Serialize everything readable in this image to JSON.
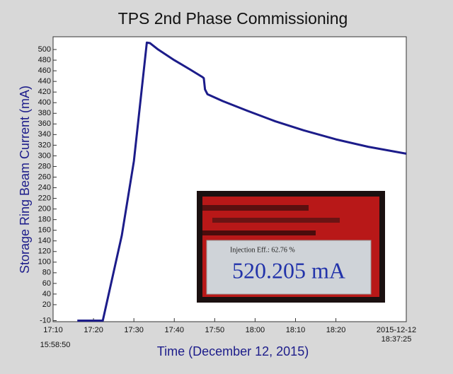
{
  "chart_data": {
    "type": "line",
    "title": "TPS 2nd Phase Commissioning",
    "x_label": "Time (December 12, 2015)",
    "y_label": "Storage Ring Beam Current (mA)",
    "x": [
      16,
      22.3,
      27,
      30,
      33.2,
      34,
      36,
      40,
      44,
      47,
      47.3,
      47.6,
      48.2,
      52,
      58,
      65,
      72,
      80,
      88,
      97.42
    ],
    "series": [
      {
        "name": "Storage Ring Beam Current",
        "color": "#1c1c8a",
        "values": [
          -10,
          -10,
          150,
          290,
          513,
          512,
          500,
          480,
          462,
          448,
          446,
          425,
          416,
          403,
          385,
          365,
          348,
          331,
          317,
          304
        ]
      }
    ],
    "xlim": [
      10,
      97.42
    ],
    "xticks": [
      {
        "value": 10,
        "label": "17:10"
      },
      {
        "value": 20,
        "label": "17:20"
      },
      {
        "value": 30,
        "label": "17:30"
      },
      {
        "value": 40,
        "label": "17:40"
      },
      {
        "value": 50,
        "label": "17:50"
      },
      {
        "value": 60,
        "label": "18:00"
      },
      {
        "value": 70,
        "label": "18:10"
      },
      {
        "value": 80,
        "label": "18:20"
      },
      {
        "value": 97.42,
        "label": "2015-12-12"
      }
    ],
    "x_start_sublabel": "15:58:50",
    "x_end_sublabel": "18:37:25",
    "ylim": [
      -12,
      524
    ],
    "yticks": [
      -10,
      20,
      40,
      60,
      80,
      100,
      120,
      140,
      160,
      180,
      200,
      220,
      240,
      260,
      280,
      300,
      320,
      340,
      360,
      380,
      400,
      420,
      440,
      460,
      480,
      500
    ],
    "inset": {
      "efficiency": "Injection Eff.: 62.76 %",
      "reading": "520.205 mA"
    }
  }
}
